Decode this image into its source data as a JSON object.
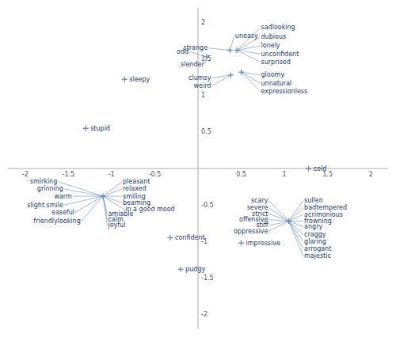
{
  "chart_data": {
    "type": "scatter",
    "color": "#6b8cba",
    "xlim": [
      -2.2,
      2.2
    ],
    "ylim": [
      -2.2,
      2.2
    ],
    "xticks": [
      -2,
      -1.5,
      -1,
      -0.5,
      0.5,
      1,
      1.5,
      2
    ],
    "yticks": [
      -2,
      -1.5,
      -1,
      -0.5,
      0.5,
      1,
      1.5,
      2
    ],
    "grid": false,
    "clusters": [
      {
        "x": 0.45,
        "y": 1.62,
        "members": [
          {
            "label": "sadlooking",
            "x": 0.72,
            "y": 1.93
          },
          {
            "label": "dubious",
            "x": 0.72,
            "y": 1.8
          },
          {
            "label": "lonely",
            "x": 0.72,
            "y": 1.68
          },
          {
            "label": "unconfident",
            "x": 0.72,
            "y": 1.57
          },
          {
            "label": "surprised",
            "x": 0.72,
            "y": 1.46
          }
        ]
      },
      {
        "x": 0.5,
        "y": 1.32,
        "members": [
          {
            "label": "gloomy",
            "x": 0.72,
            "y": 1.28
          },
          {
            "label": "unnatural",
            "x": 0.72,
            "y": 1.17
          },
          {
            "label": "expressionless",
            "x": 0.72,
            "y": 1.06
          }
        ]
      },
      {
        "x": 0.37,
        "y": 1.62,
        "members": [
          {
            "label": "uneasy",
            "x": 0.42,
            "y": 1.82
          },
          {
            "label": "strange",
            "x": 0.12,
            "y": 1.65
          }
        ]
      },
      {
        "x": 0.1,
        "y": 1.53,
        "members": [
          {
            "label": "odd",
            "x": -0.1,
            "y": 1.6
          },
          {
            "label": "slender",
            "x": 0.08,
            "y": 1.43
          }
        ]
      },
      {
        "x": 0.38,
        "y": 1.28,
        "members": [
          {
            "label": "clumsy",
            "x": 0.16,
            "y": 1.24
          },
          {
            "label": "weird",
            "x": 0.16,
            "y": 1.13
          }
        ]
      },
      {
        "x": -1.1,
        "y": -0.38,
        "members": [
          {
            "label": "smirking",
            "x": -1.62,
            "y": -0.18
          },
          {
            "label": "grinning",
            "x": -1.55,
            "y": -0.28
          },
          {
            "label": "warm",
            "x": -1.45,
            "y": -0.38
          },
          {
            "label": "slight smile",
            "x": -1.55,
            "y": -0.5
          },
          {
            "label": "easeful",
            "x": -1.42,
            "y": -0.6
          },
          {
            "label": "friendlylooking",
            "x": -1.35,
            "y": -0.72
          },
          {
            "label": "pleasant",
            "x": -0.88,
            "y": -0.18
          },
          {
            "label": "relaxed",
            "x": -0.88,
            "y": -0.28
          },
          {
            "label": "smiling",
            "x": -0.88,
            "y": -0.38
          },
          {
            "label": "beaming",
            "x": -0.88,
            "y": -0.47
          },
          {
            "label": "in a good mood",
            "x": -0.85,
            "y": -0.56
          },
          {
            "label": "amiable",
            "x": -1.05,
            "y": -0.62
          },
          {
            "label": "calm",
            "x": -1.05,
            "y": -0.7
          },
          {
            "label": "joyful",
            "x": -1.05,
            "y": -0.78
          }
        ]
      },
      {
        "x": 1.05,
        "y": -0.72,
        "members": [
          {
            "label": "scary",
            "x": 0.82,
            "y": -0.44
          },
          {
            "label": "severe",
            "x": 0.82,
            "y": -0.54
          },
          {
            "label": "strict",
            "x": 0.82,
            "y": -0.62
          },
          {
            "label": "offensive",
            "x": 0.82,
            "y": -0.7
          },
          {
            "label": "stiff",
            "x": 0.82,
            "y": -0.78
          },
          {
            "label": "oppressive",
            "x": 0.82,
            "y": -0.86
          },
          {
            "label": "sullen",
            "x": 1.22,
            "y": -0.44
          },
          {
            "label": "badtempered",
            "x": 1.22,
            "y": -0.54
          },
          {
            "label": "acrimonious",
            "x": 1.22,
            "y": -0.63
          },
          {
            "label": "frowning",
            "x": 1.22,
            "y": -0.72
          },
          {
            "label": "angry",
            "x": 1.22,
            "y": -0.8
          },
          {
            "label": "craggy",
            "x": 1.22,
            "y": -0.91
          },
          {
            "label": "glaring",
            "x": 1.22,
            "y": -1.0
          },
          {
            "label": "arrogant",
            "x": 1.22,
            "y": -1.1
          },
          {
            "label": "majestic",
            "x": 1.22,
            "y": -1.2
          }
        ]
      }
    ],
    "points": [
      {
        "label": "sleepy",
        "x": -0.85,
        "y": 1.22
      },
      {
        "label": "stupid",
        "x": -1.3,
        "y": 0.55
      },
      {
        "label": "cold",
        "x": 1.28,
        "y": 0.0
      },
      {
        "label": "confident",
        "x": -0.32,
        "y": -0.95
      },
      {
        "label": "impressive",
        "x": 0.5,
        "y": -1.02
      },
      {
        "label": "pudgy",
        "x": -0.2,
        "y": -1.38
      }
    ]
  }
}
